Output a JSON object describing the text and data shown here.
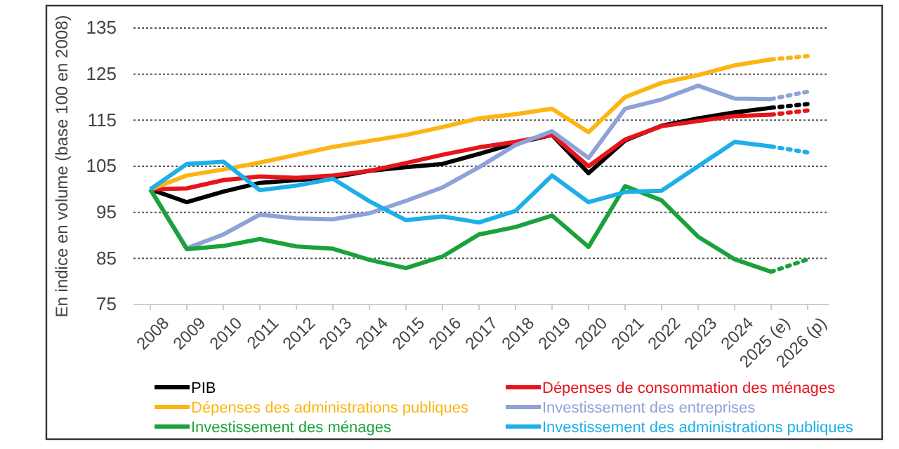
{
  "chart_data": {
    "type": "line",
    "ylabel": "En indice en volume (base 100 en 2008)",
    "categories": [
      "2008",
      "2009",
      "2010",
      "2011",
      "2012",
      "2013",
      "2014",
      "2015",
      "2016",
      "2017",
      "2018",
      "2019",
      "2020",
      "2021",
      "2022",
      "2023",
      "2024",
      "2025 (e)",
      "2026 (p)"
    ],
    "ylim": [
      75,
      135
    ],
    "yticks": [
      75,
      85,
      95,
      105,
      115,
      125,
      135
    ],
    "grid": "y",
    "legend": "bottom",
    "line_style": "solid",
    "marker": "none",
    "series": [
      {
        "name": "PIB",
        "color": "#000000",
        "values": [
          100,
          97.2,
          99.5,
          101.4,
          102,
          102.6,
          104,
          104.8,
          105.5,
          107.7,
          110,
          111.8,
          103.5,
          110.6,
          113.8,
          115.4,
          116.7,
          117.7,
          null
        ]
      },
      {
        "name": "Dépenses de consommation des ménages",
        "color": "#e8141b",
        "values": [
          100,
          100.2,
          102,
          102.8,
          102.5,
          103,
          104,
          105.7,
          107.5,
          109.1,
          110.3,
          111.8,
          105,
          110.8,
          113.7,
          114.8,
          115.9,
          116.2,
          null
        ]
      },
      {
        "name": "Dépenses des administrations publiques",
        "color": "#fbb514",
        "values": [
          100,
          103,
          104.3,
          105.8,
          107.5,
          109.2,
          110.5,
          111.8,
          113.5,
          115.4,
          116.3,
          117.5,
          112.4,
          120,
          123.1,
          124.8,
          126.9,
          128.2,
          null
        ]
      },
      {
        "name": "Investissement des entreprises",
        "color": "#8fa2d8",
        "values": [
          100,
          87.2,
          90.2,
          94.5,
          93.7,
          93.5,
          94.8,
          97.5,
          100.4,
          104.8,
          109.6,
          112.6,
          106.8,
          117.5,
          119.5,
          122.5,
          119.7,
          119.6,
          null
        ]
      },
      {
        "name": "Investissement des ménages",
        "color": "#1aa23a",
        "values": [
          100,
          87,
          87.7,
          89.2,
          87.6,
          87.1,
          84.7,
          82.9,
          85.4,
          90.2,
          91.8,
          94.3,
          87.5,
          100.7,
          97.6,
          89.7,
          84.8,
          82.1,
          null
        ]
      },
      {
        "name": "Investissement des administrations publiques",
        "color": "#1eaee8",
        "values": [
          100,
          105.5,
          106,
          99.8,
          100.8,
          102.3,
          97.4,
          93.3,
          94.1,
          92.8,
          95.3,
          103,
          97.2,
          99.4,
          99.7,
          105,
          110.3,
          109.3,
          null
        ]
      },
      {
        "color": "#000000",
        "line_style": "dotted",
        "values": [
          null,
          null,
          null,
          null,
          null,
          null,
          null,
          null,
          null,
          null,
          null,
          null,
          null,
          null,
          null,
          null,
          null,
          117.7,
          118.5
        ]
      },
      {
        "color": "#e8141b",
        "line_style": "dotted",
        "values": [
          null,
          null,
          null,
          null,
          null,
          null,
          null,
          null,
          null,
          null,
          null,
          null,
          null,
          null,
          null,
          null,
          null,
          116.2,
          117.1
        ]
      },
      {
        "color": "#fbb514",
        "line_style": "dotted",
        "values": [
          null,
          null,
          null,
          null,
          null,
          null,
          null,
          null,
          null,
          null,
          null,
          null,
          null,
          null,
          null,
          null,
          null,
          128.2,
          128.9
        ]
      },
      {
        "color": "#8fa2d8",
        "line_style": "dotted",
        "values": [
          null,
          null,
          null,
          null,
          null,
          null,
          null,
          null,
          null,
          null,
          null,
          null,
          null,
          null,
          null,
          null,
          null,
          119.6,
          121.2
        ]
      },
      {
        "color": "#1aa23a",
        "line_style": "dotted",
        "values": [
          null,
          null,
          null,
          null,
          null,
          null,
          null,
          null,
          null,
          null,
          null,
          null,
          null,
          null,
          null,
          null,
          null,
          82.1,
          84.8
        ]
      },
      {
        "color": "#1eaee8",
        "line_style": "dotted",
        "values": [
          null,
          null,
          null,
          null,
          null,
          null,
          null,
          null,
          null,
          null,
          null,
          null,
          null,
          null,
          null,
          null,
          null,
          109.3,
          108
        ]
      }
    ]
  }
}
